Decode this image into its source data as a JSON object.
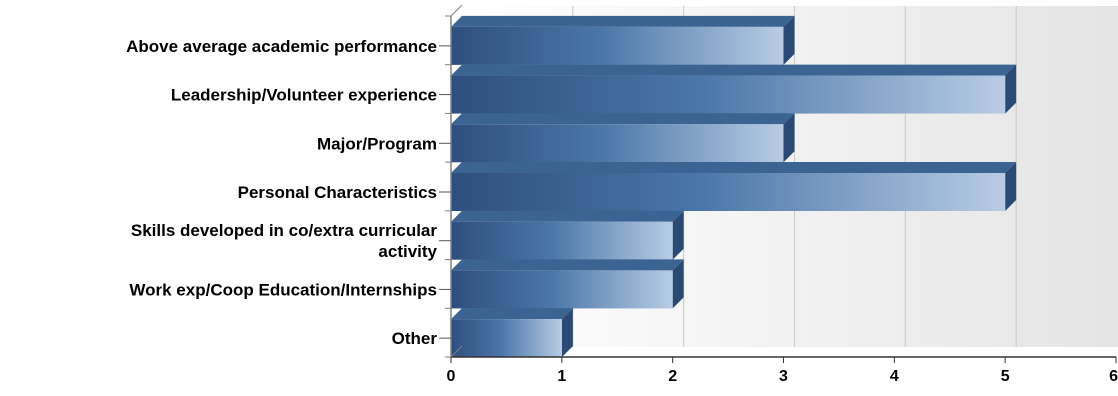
{
  "chart_data": {
    "type": "bar",
    "orientation": "horizontal",
    "categories": [
      [
        "Above average academic performance"
      ],
      [
        "Leadership/Volunteer experience"
      ],
      [
        "Major/Program"
      ],
      [
        "Personal Characteristics"
      ],
      [
        "Skills developed in co/extra curricular",
        "activity"
      ],
      [
        "Work exp/Coop Education/Internships"
      ],
      [
        "Other"
      ]
    ],
    "values": [
      3,
      5,
      3,
      5,
      2,
      2,
      1
    ],
    "xlim": [
      0,
      6
    ],
    "xticks": [
      "0",
      "1",
      "2",
      "3",
      "4",
      "5",
      "6"
    ],
    "title": "",
    "xlabel": "",
    "ylabel": "",
    "grid": "vertical",
    "legend": "none",
    "colors": {
      "bar_dark": "#2e4f7e",
      "bar_mid": "#4a76a8",
      "bar_light": "#b8cce4",
      "bar_top": "#3b6493",
      "bar_side": "#2a4a74",
      "background_light": "#ffffff",
      "background_dark": "#e4e4e4",
      "gridline": "#c8c8c8",
      "axis": "#808080"
    }
  }
}
